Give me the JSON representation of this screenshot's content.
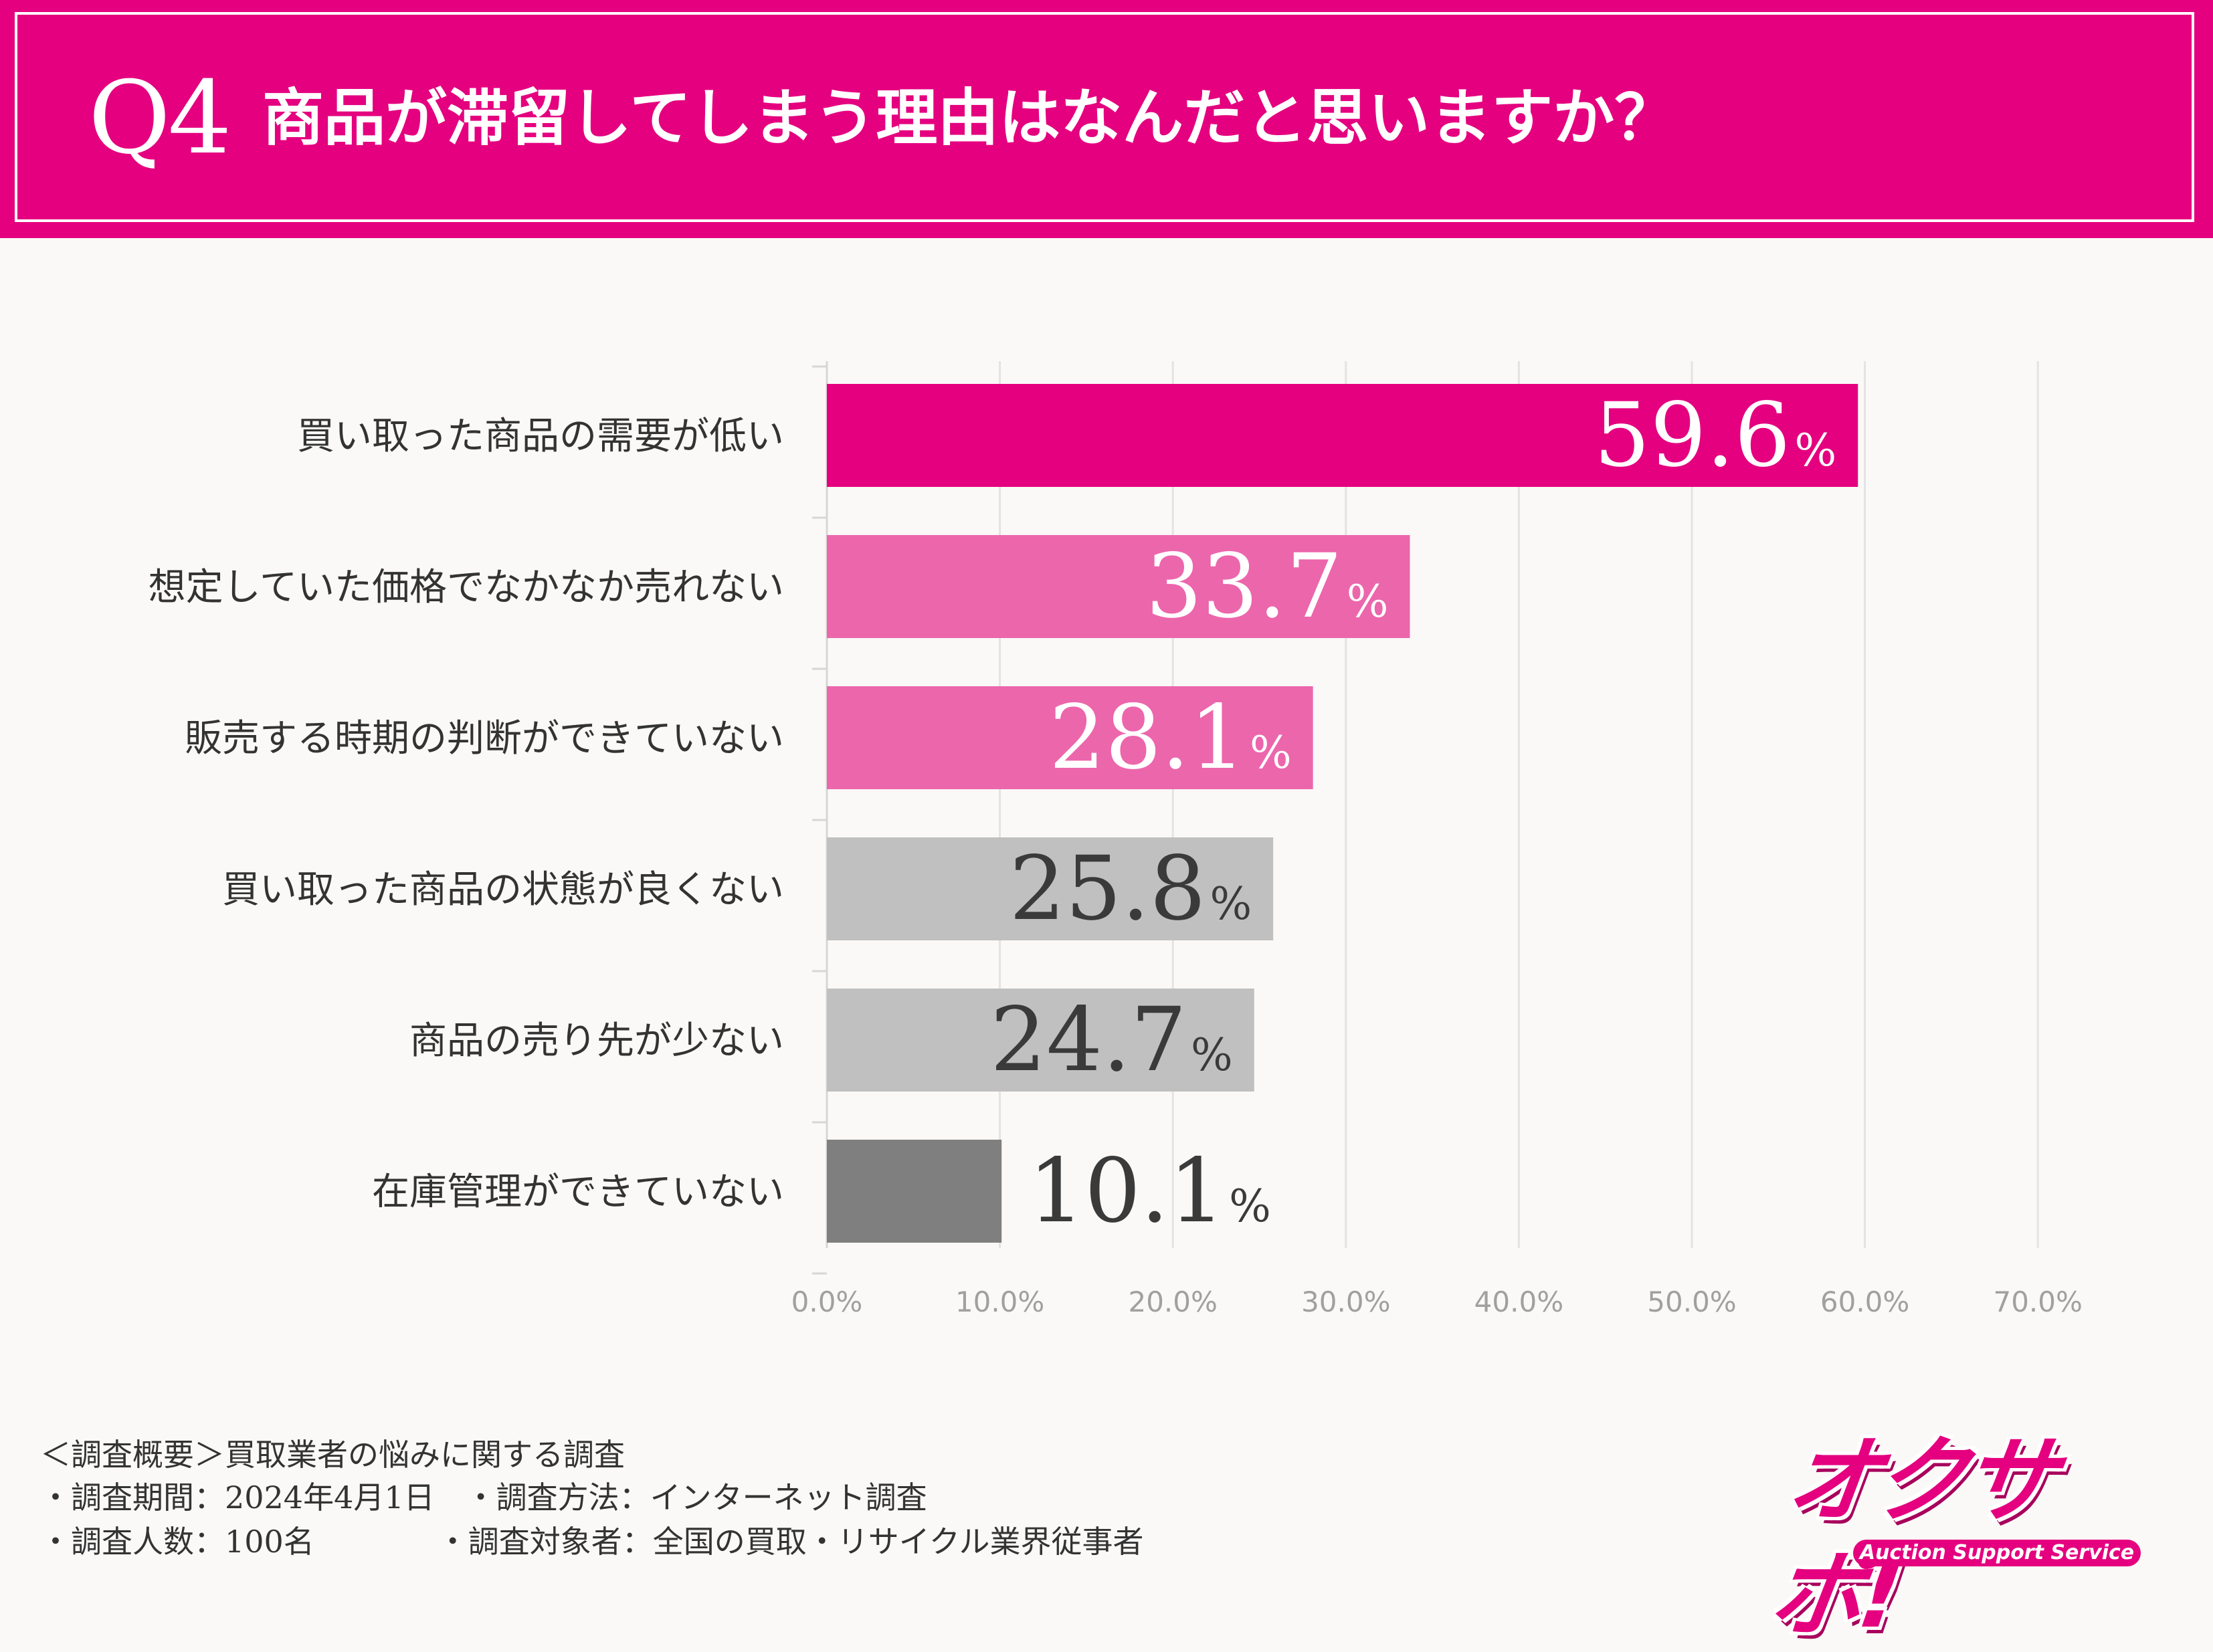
{
  "header": {
    "q_label": "Q4",
    "title": "商品が滞留してしまう理由はなんだと思いますか？"
  },
  "chart_data": {
    "type": "bar",
    "orientation": "horizontal",
    "categories": [
      "買い取った商品の需要が低い",
      "想定していた価格でなかなか売れない",
      "販売する時期の判断ができていない",
      "買い取った商品の状態が良くない",
      "商品の売り先が少ない",
      "在庫管理ができていない"
    ],
    "values": [
      59.6,
      33.7,
      28.1,
      25.8,
      24.7,
      10.1
    ],
    "value_labels": [
      "59.6",
      "33.7",
      "28.1",
      "25.8",
      "24.7",
      "10.1"
    ],
    "unit": "%",
    "bar_colors": [
      "#e4007f",
      "#ec66ac",
      "#ec66ac",
      "#c0c0c0",
      "#c0c0c0",
      "#7f7f7f"
    ],
    "label_colors": [
      "#ffffff",
      "#ffffff",
      "#ffffff",
      "#3a3a3a",
      "#3a3a3a",
      "#3a3a3a"
    ],
    "xlim": [
      0,
      70
    ],
    "xticks": [
      "0.0%",
      "10.0%",
      "20.0%",
      "30.0%",
      "40.0%",
      "50.0%",
      "60.0%",
      "70.0%"
    ],
    "grid": true
  },
  "footer": {
    "line1": "＜調査概要＞買取業者の悩みに関する調査",
    "line2": "・調査期間：2024年4月1日　・調査方法：インターネット調査",
    "line3": "・調査人数：100名　　　　・調査対象者：全国の買取・リサイクル業界従事者"
  },
  "logo": {
    "text": "オクサポ!",
    "subtitle": "Auction Support Service"
  },
  "colors": {
    "brand": "#e4007f",
    "background": "#faf9f7",
    "grid": "#e3e3e3"
  }
}
